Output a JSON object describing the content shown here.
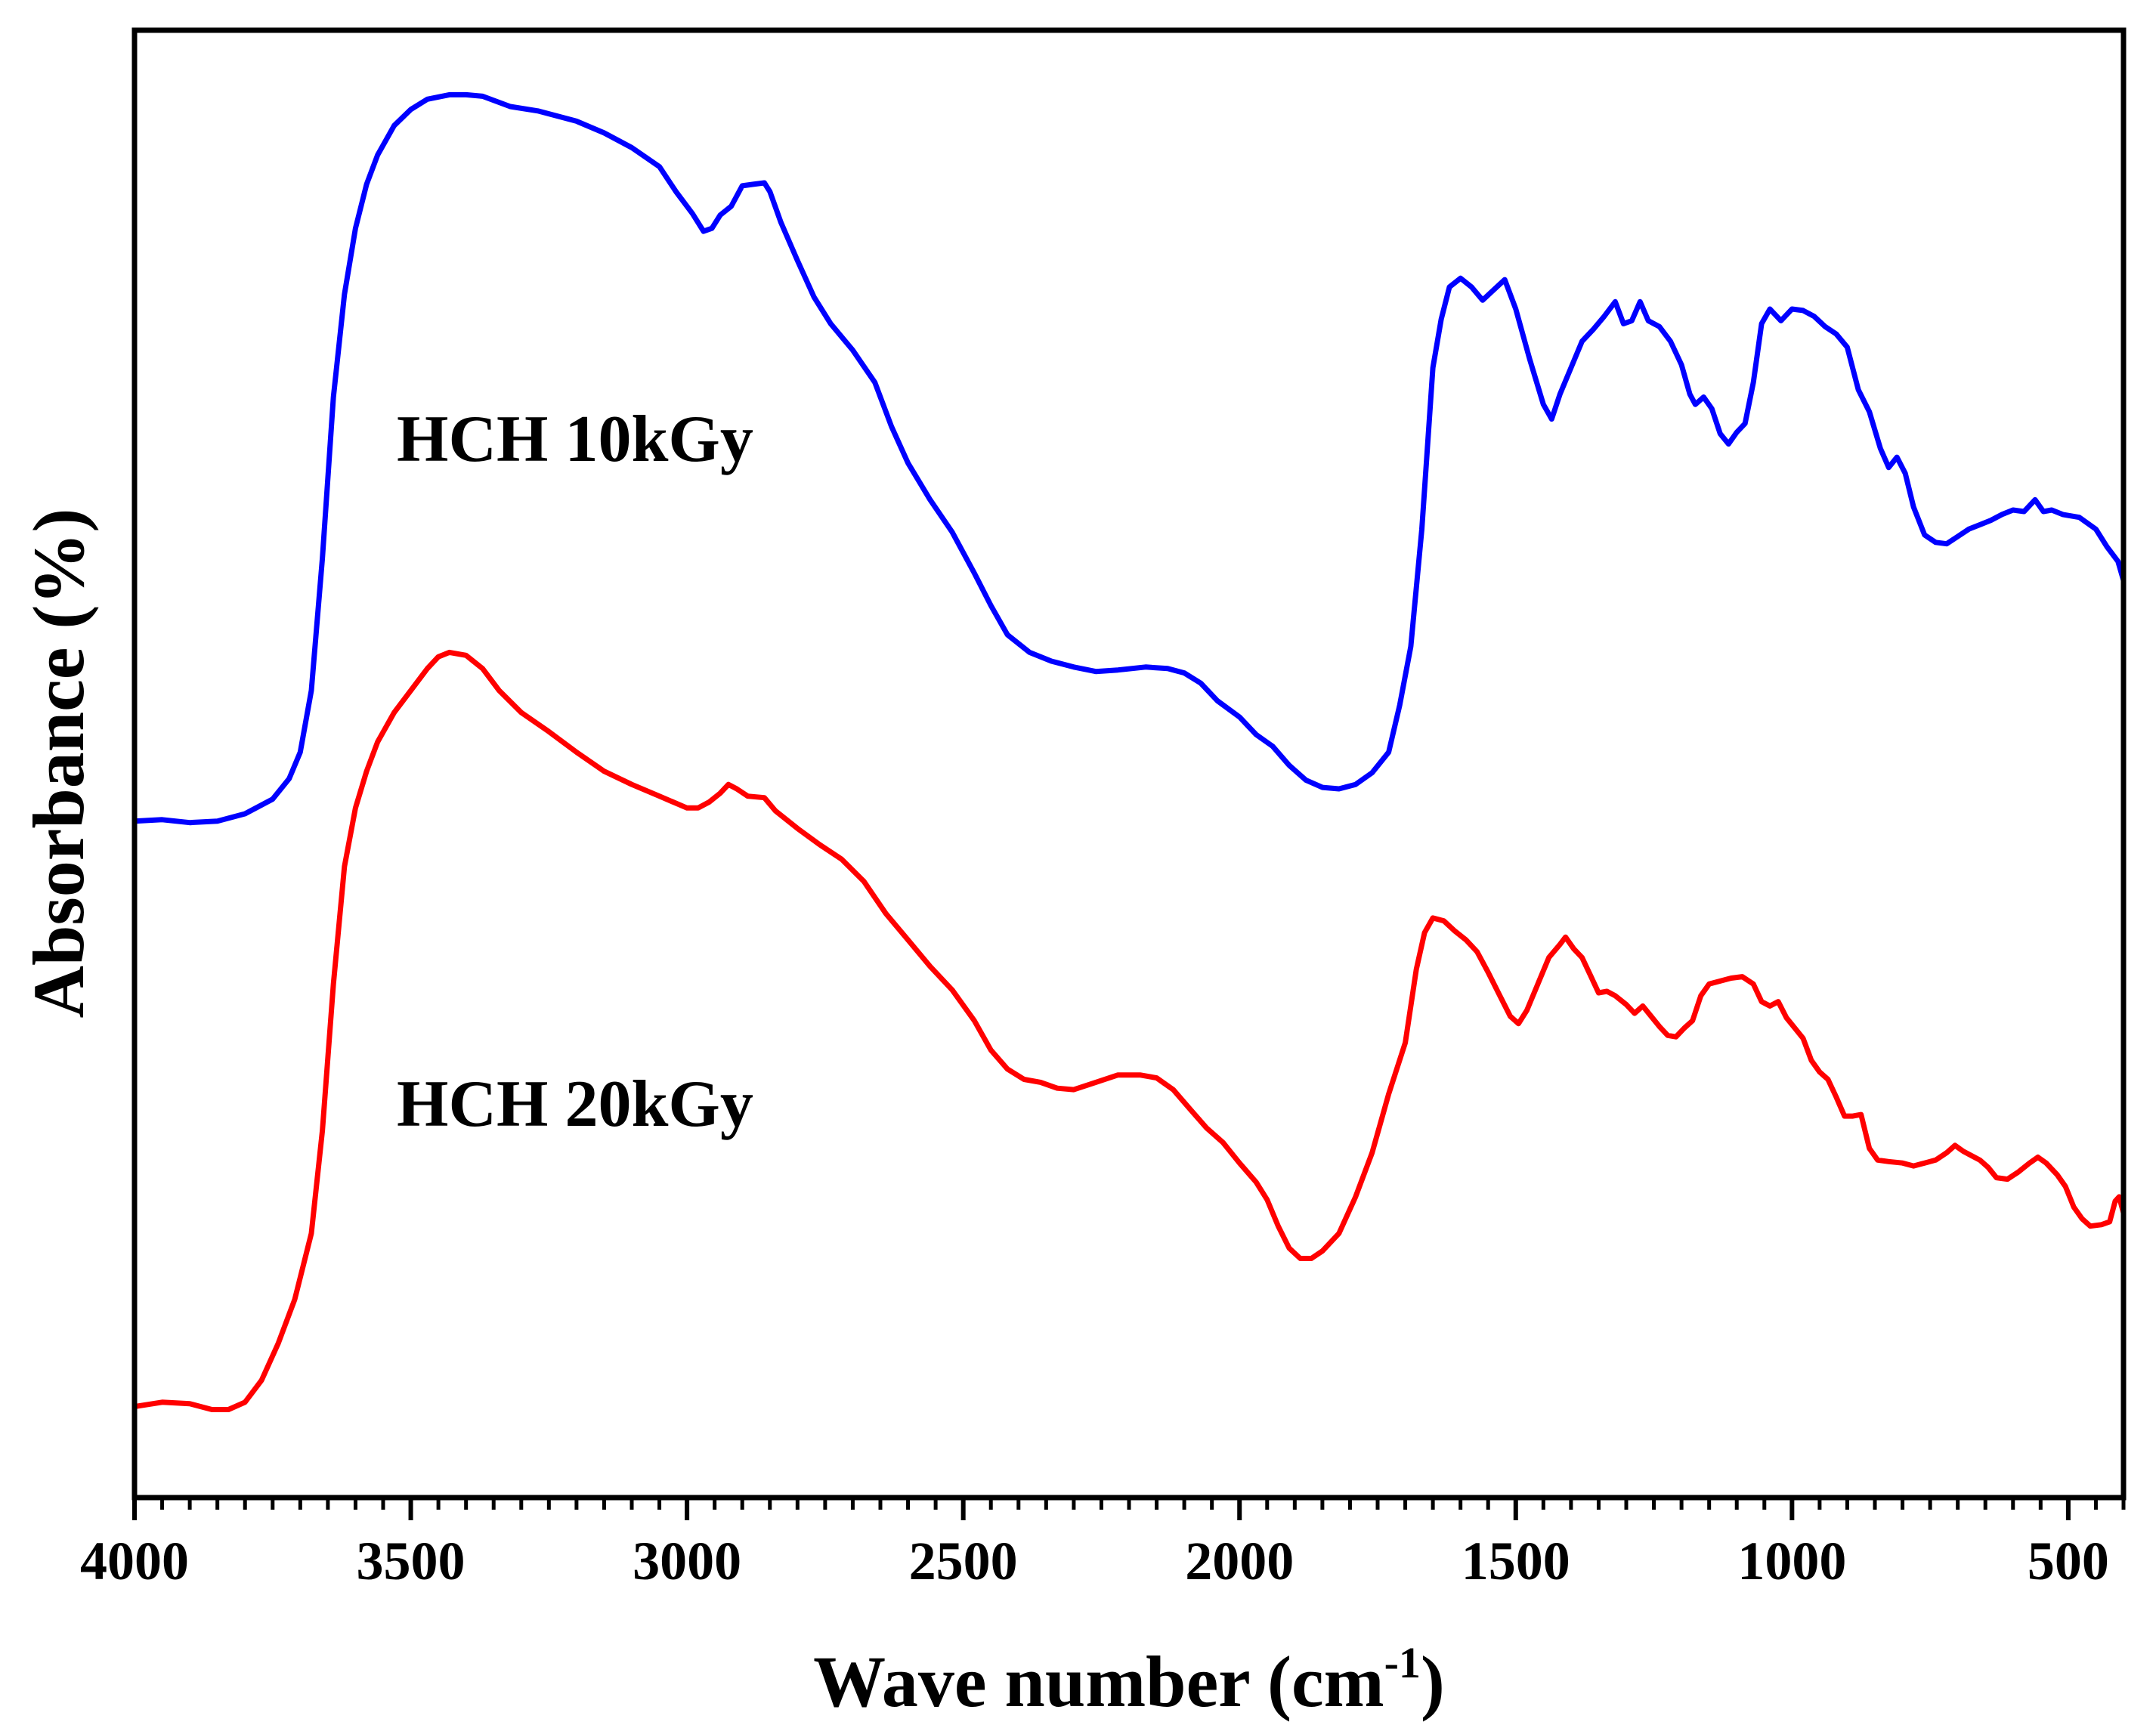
{
  "chart_data": {
    "type": "line",
    "title": "",
    "xlabel": "Wave number (cm",
    "xlabel_sup": "-1",
    "xlabel_end": ")",
    "ylabel": "Absorbance (%)",
    "xlim": [
      4000,
      400
    ],
    "ylim": [
      0,
      100
    ],
    "x_reversed": true,
    "y_ticks_visible": false,
    "grid": false,
    "x_ticks": [
      4000,
      3500,
      3000,
      2500,
      2000,
      1500,
      1000,
      500
    ],
    "x_tick_labels": [
      "4000",
      "3500",
      "3000",
      "2500",
      "2000",
      "1500",
      "1000",
      "500"
    ],
    "series": [
      {
        "name": "HCH 10kGy",
        "color": "#0000ff",
        "points": [
          [
            4000,
            46.1
          ],
          [
            3950,
            46.2
          ],
          [
            3900,
            46.0
          ],
          [
            3850,
            46.1
          ],
          [
            3800,
            46.6
          ],
          [
            3750,
            47.6
          ],
          [
            3720,
            49.0
          ],
          [
            3700,
            50.8
          ],
          [
            3680,
            55.0
          ],
          [
            3660,
            64.0
          ],
          [
            3640,
            75.0
          ],
          [
            3620,
            82.0
          ],
          [
            3600,
            86.5
          ],
          [
            3580,
            89.5
          ],
          [
            3560,
            91.5
          ],
          [
            3530,
            93.5
          ],
          [
            3500,
            94.6
          ],
          [
            3470,
            95.3
          ],
          [
            3430,
            95.6
          ],
          [
            3400,
            95.6
          ],
          [
            3370,
            95.5
          ],
          [
            3320,
            94.8
          ],
          [
            3270,
            94.5
          ],
          [
            3200,
            93.8
          ],
          [
            3150,
            93.0
          ],
          [
            3100,
            92.0
          ],
          [
            3050,
            90.7
          ],
          [
            3020,
            89.0
          ],
          [
            2990,
            87.5
          ],
          [
            2970,
            86.3
          ],
          [
            2955,
            86.5
          ],
          [
            2940,
            87.4
          ],
          [
            2920,
            88.0
          ],
          [
            2900,
            89.4
          ],
          [
            2880,
            89.5
          ],
          [
            2860,
            89.6
          ],
          [
            2850,
            89.0
          ],
          [
            2830,
            86.9
          ],
          [
            2800,
            84.3
          ],
          [
            2770,
            81.8
          ],
          [
            2740,
            80.0
          ],
          [
            2700,
            78.2
          ],
          [
            2660,
            76.0
          ],
          [
            2630,
            73.0
          ],
          [
            2600,
            70.5
          ],
          [
            2560,
            68.0
          ],
          [
            2520,
            65.8
          ],
          [
            2480,
            63.0
          ],
          [
            2450,
            60.8
          ],
          [
            2420,
            58.8
          ],
          [
            2380,
            57.6
          ],
          [
            2340,
            57.0
          ],
          [
            2300,
            56.6
          ],
          [
            2260,
            56.3
          ],
          [
            2220,
            56.4
          ],
          [
            2170,
            56.6
          ],
          [
            2130,
            56.5
          ],
          [
            2100,
            56.2
          ],
          [
            2070,
            55.5
          ],
          [
            2040,
            54.3
          ],
          [
            2000,
            53.2
          ],
          [
            1970,
            52.0
          ],
          [
            1940,
            51.2
          ],
          [
            1910,
            49.9
          ],
          [
            1880,
            48.9
          ],
          [
            1850,
            48.4
          ],
          [
            1820,
            48.3
          ],
          [
            1790,
            48.6
          ],
          [
            1760,
            49.4
          ],
          [
            1730,
            50.8
          ],
          [
            1710,
            54.0
          ],
          [
            1690,
            58.0
          ],
          [
            1670,
            66.0
          ],
          [
            1650,
            77.0
          ],
          [
            1635,
            80.3
          ],
          [
            1620,
            82.5
          ],
          [
            1600,
            83.1
          ],
          [
            1580,
            82.5
          ],
          [
            1560,
            81.6
          ],
          [
            1540,
            82.3
          ],
          [
            1520,
            83.0
          ],
          [
            1500,
            81.0
          ],
          [
            1475,
            77.6
          ],
          [
            1450,
            74.5
          ],
          [
            1435,
            73.5
          ],
          [
            1420,
            75.2
          ],
          [
            1400,
            77.0
          ],
          [
            1380,
            78.8
          ],
          [
            1360,
            79.6
          ],
          [
            1340,
            80.5
          ],
          [
            1320,
            81.5
          ],
          [
            1305,
            80.0
          ],
          [
            1290,
            80.2
          ],
          [
            1275,
            81.5
          ],
          [
            1260,
            80.2
          ],
          [
            1240,
            79.8
          ],
          [
            1220,
            78.8
          ],
          [
            1200,
            77.2
          ],
          [
            1185,
            75.2
          ],
          [
            1175,
            74.5
          ],
          [
            1160,
            75.0
          ],
          [
            1145,
            74.2
          ],
          [
            1130,
            72.5
          ],
          [
            1115,
            71.8
          ],
          [
            1100,
            72.6
          ],
          [
            1085,
            73.2
          ],
          [
            1070,
            76.0
          ],
          [
            1055,
            80.0
          ],
          [
            1040,
            81.0
          ],
          [
            1020,
            80.2
          ],
          [
            1000,
            81.0
          ],
          [
            980,
            80.9
          ],
          [
            960,
            80.5
          ],
          [
            940,
            79.8
          ],
          [
            920,
            79.3
          ],
          [
            900,
            78.4
          ],
          [
            880,
            75.5
          ],
          [
            860,
            74.0
          ],
          [
            840,
            71.5
          ],
          [
            825,
            70.2
          ],
          [
            810,
            70.9
          ],
          [
            795,
            69.8
          ],
          [
            780,
            67.5
          ],
          [
            760,
            65.6
          ],
          [
            740,
            65.1
          ],
          [
            720,
            65.0
          ],
          [
            700,
            65.5
          ],
          [
            680,
            66.0
          ],
          [
            660,
            66.3
          ],
          [
            640,
            66.6
          ],
          [
            620,
            67.0
          ],
          [
            600,
            67.3
          ],
          [
            580,
            67.2
          ],
          [
            560,
            68.0
          ],
          [
            545,
            67.2
          ],
          [
            530,
            67.3
          ],
          [
            510,
            67.0
          ],
          [
            480,
            66.8
          ],
          [
            450,
            66.0
          ],
          [
            430,
            64.8
          ],
          [
            410,
            63.8
          ],
          [
            400,
            62.5
          ]
        ]
      },
      {
        "name": "HCH 20kGy",
        "color": "#ff0000",
        "points": [
          [
            4000,
            6.2
          ],
          [
            3950,
            6.5
          ],
          [
            3900,
            6.4
          ],
          [
            3860,
            6.0
          ],
          [
            3830,
            6.0
          ],
          [
            3800,
            6.5
          ],
          [
            3770,
            8.0
          ],
          [
            3740,
            10.5
          ],
          [
            3710,
            13.5
          ],
          [
            3680,
            18.0
          ],
          [
            3660,
            25.0
          ],
          [
            3640,
            35.0
          ],
          [
            3620,
            43.0
          ],
          [
            3600,
            47.0
          ],
          [
            3580,
            49.5
          ],
          [
            3560,
            51.5
          ],
          [
            3530,
            53.5
          ],
          [
            3500,
            55.0
          ],
          [
            3470,
            56.5
          ],
          [
            3450,
            57.3
          ],
          [
            3430,
            57.6
          ],
          [
            3400,
            57.4
          ],
          [
            3370,
            56.5
          ],
          [
            3340,
            55.0
          ],
          [
            3300,
            53.5
          ],
          [
            3250,
            52.2
          ],
          [
            3200,
            50.8
          ],
          [
            3150,
            49.5
          ],
          [
            3100,
            48.6
          ],
          [
            3050,
            47.8
          ],
          [
            3000,
            47.0
          ],
          [
            2980,
            47.0
          ],
          [
            2960,
            47.4
          ],
          [
            2940,
            48.0
          ],
          [
            2925,
            48.6
          ],
          [
            2910,
            48.3
          ],
          [
            2890,
            47.8
          ],
          [
            2860,
            47.7
          ],
          [
            2840,
            46.8
          ],
          [
            2800,
            45.6
          ],
          [
            2760,
            44.5
          ],
          [
            2720,
            43.5
          ],
          [
            2680,
            42.0
          ],
          [
            2640,
            39.8
          ],
          [
            2600,
            38.0
          ],
          [
            2560,
            36.2
          ],
          [
            2520,
            34.6
          ],
          [
            2480,
            32.5
          ],
          [
            2450,
            30.5
          ],
          [
            2420,
            29.2
          ],
          [
            2390,
            28.5
          ],
          [
            2360,
            28.3
          ],
          [
            2330,
            27.9
          ],
          [
            2300,
            27.8
          ],
          [
            2260,
            28.3
          ],
          [
            2220,
            28.8
          ],
          [
            2180,
            28.8
          ],
          [
            2150,
            28.6
          ],
          [
            2120,
            27.8
          ],
          [
            2090,
            26.5
          ],
          [
            2060,
            25.2
          ],
          [
            2030,
            24.2
          ],
          [
            2000,
            22.8
          ],
          [
            1970,
            21.5
          ],
          [
            1950,
            20.3
          ],
          [
            1930,
            18.5
          ],
          [
            1910,
            17.0
          ],
          [
            1890,
            16.3
          ],
          [
            1870,
            16.3
          ],
          [
            1850,
            16.8
          ],
          [
            1820,
            18.0
          ],
          [
            1790,
            20.5
          ],
          [
            1760,
            23.5
          ],
          [
            1730,
            27.5
          ],
          [
            1700,
            31.0
          ],
          [
            1680,
            36.0
          ],
          [
            1665,
            38.5
          ],
          [
            1650,
            39.5
          ],
          [
            1630,
            39.3
          ],
          [
            1610,
            38.6
          ],
          [
            1590,
            38.0
          ],
          [
            1570,
            37.2
          ],
          [
            1550,
            35.8
          ],
          [
            1530,
            34.3
          ],
          [
            1510,
            32.8
          ],
          [
            1495,
            32.3
          ],
          [
            1480,
            33.2
          ],
          [
            1460,
            35.0
          ],
          [
            1440,
            36.8
          ],
          [
            1420,
            37.7
          ],
          [
            1410,
            38.2
          ],
          [
            1395,
            37.4
          ],
          [
            1380,
            36.8
          ],
          [
            1365,
            35.6
          ],
          [
            1350,
            34.4
          ],
          [
            1335,
            34.5
          ],
          [
            1320,
            34.2
          ],
          [
            1300,
            33.6
          ],
          [
            1285,
            33.0
          ],
          [
            1270,
            33.5
          ],
          [
            1255,
            32.8
          ],
          [
            1240,
            32.1
          ],
          [
            1225,
            31.5
          ],
          [
            1210,
            31.4
          ],
          [
            1195,
            32.0
          ],
          [
            1180,
            32.5
          ],
          [
            1165,
            34.2
          ],
          [
            1150,
            35.0
          ],
          [
            1130,
            35.2
          ],
          [
            1110,
            35.4
          ],
          [
            1090,
            35.5
          ],
          [
            1070,
            35.0
          ],
          [
            1055,
            33.8
          ],
          [
            1040,
            33.5
          ],
          [
            1025,
            33.8
          ],
          [
            1010,
            32.7
          ],
          [
            995,
            32.0
          ],
          [
            980,
            31.3
          ],
          [
            965,
            29.8
          ],
          [
            950,
            29.0
          ],
          [
            935,
            28.5
          ],
          [
            920,
            27.3
          ],
          [
            905,
            26.0
          ],
          [
            890,
            26.0
          ],
          [
            875,
            26.1
          ],
          [
            860,
            23.8
          ],
          [
            845,
            23.0
          ],
          [
            825,
            22.9
          ],
          [
            800,
            22.8
          ],
          [
            780,
            22.6
          ],
          [
            760,
            22.8
          ],
          [
            740,
            23.0
          ],
          [
            720,
            23.5
          ],
          [
            705,
            24.0
          ],
          [
            690,
            23.6
          ],
          [
            675,
            23.3
          ],
          [
            660,
            23.0
          ],
          [
            645,
            22.5
          ],
          [
            630,
            21.8
          ],
          [
            610,
            21.7
          ],
          [
            590,
            22.2
          ],
          [
            570,
            22.8
          ],
          [
            555,
            23.2
          ],
          [
            540,
            22.8
          ],
          [
            520,
            22.0
          ],
          [
            505,
            21.2
          ],
          [
            490,
            19.8
          ],
          [
            475,
            19.0
          ],
          [
            460,
            18.5
          ],
          [
            440,
            18.6
          ],
          [
            425,
            18.8
          ],
          [
            415,
            20.2
          ],
          [
            408,
            20.5
          ],
          [
            400,
            19.4
          ]
        ]
      }
    ],
    "annotations": [
      {
        "text": "HCH 10kGy",
        "series": "HCH 10kGy"
      },
      {
        "text": "HCH 20kGy",
        "series": "HCH 20kGy"
      }
    ]
  }
}
